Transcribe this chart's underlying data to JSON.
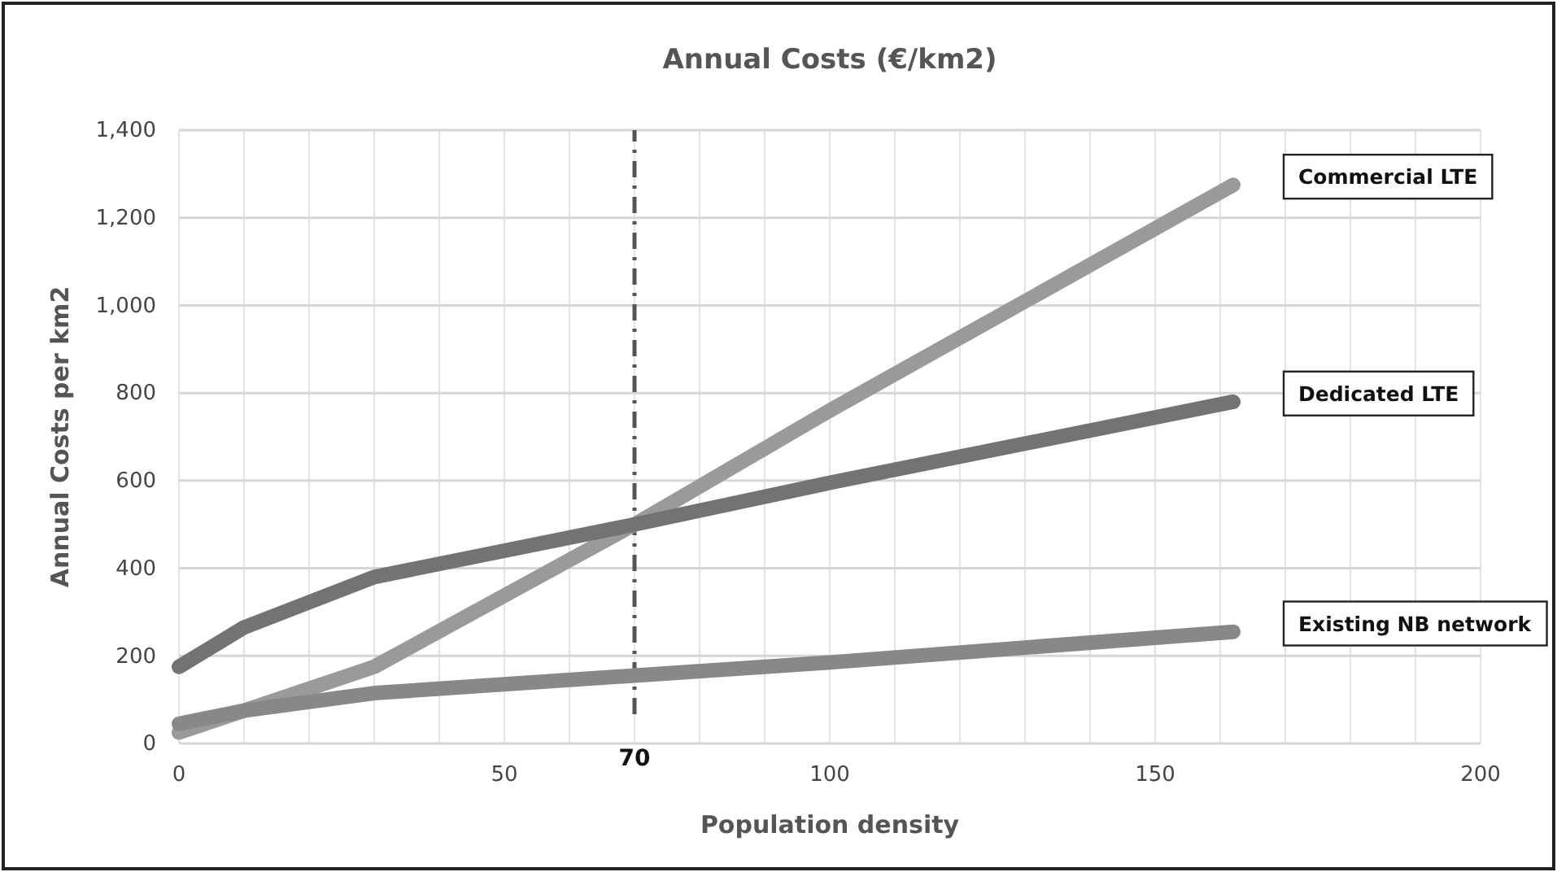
{
  "chart_data": {
    "type": "line",
    "title": "Annual Costs (€/km2)",
    "xlabel": "Population density",
    "ylabel": "Annual Costs per km2",
    "x": [
      0,
      10,
      30,
      70,
      100,
      162
    ],
    "series": [
      {
        "name": "Commercial LTE",
        "color": "#9a9a9a",
        "values": [
          25,
          75,
          175,
          500,
          760,
          1275
        ]
      },
      {
        "name": "Dedicated LTE",
        "color": "#737373",
        "values": [
          175,
          265,
          380,
          500,
          595,
          780
        ]
      },
      {
        "name": "Existing NB network",
        "color": "#888888",
        "values": [
          45,
          75,
          115,
          155,
          185,
          255
        ]
      }
    ],
    "xlim": [
      0,
      200
    ],
    "ylim": [
      0,
      1400
    ],
    "xticks": [
      0,
      {
        "value": 10,
        "label": null
      },
      {
        "value": 20,
        "label": null
      },
      {
        "value": 30,
        "label": null
      },
      {
        "value": 40,
        "label": null
      },
      50,
      {
        "value": 60,
        "label": null
      },
      {
        "value": 70,
        "label": null
      },
      {
        "value": 80,
        "label": null
      },
      {
        "value": 90,
        "label": null
      },
      100,
      {
        "value": 110,
        "label": null
      },
      {
        "value": 120,
        "label": null
      },
      {
        "value": 130,
        "label": null
      },
      {
        "value": 140,
        "label": null
      },
      150,
      {
        "value": 160,
        "label": null
      },
      {
        "value": 170,
        "label": null
      },
      {
        "value": 180,
        "label": null
      },
      {
        "value": 190,
        "label": null
      },
      200
    ],
    "yticks": [
      0,
      {
        "value": 200,
        "label": "200"
      },
      {
        "value": 400,
        "label": "400"
      },
      {
        "value": 600,
        "label": "600"
      },
      {
        "value": 800,
        "label": "800"
      },
      {
        "value": 1000,
        "label": "1,000"
      },
      {
        "value": 1200,
        "label": "1,200"
      },
      {
        "value": 1400,
        "label": "1,400"
      }
    ],
    "grid": true,
    "legend": false,
    "marker": "none",
    "line_style": "solid",
    "ref_lines": [
      {
        "axis": "x",
        "value": 70,
        "label": "70",
        "color": "#555555",
        "line_style": "dashdot"
      }
    ]
  }
}
